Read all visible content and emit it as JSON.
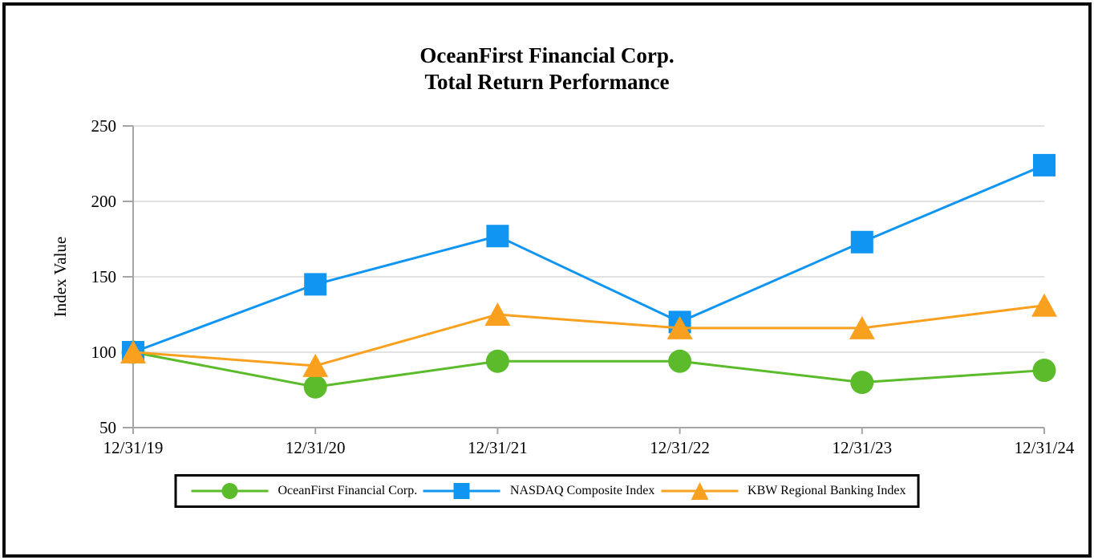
{
  "page": {
    "background_color": "#ffffff",
    "border_color": "#0a0a0a"
  },
  "chart_data": {
    "type": "line",
    "title": "OceanFirst Financial Corp. Total Return Performance",
    "title_lines": [
      "OceanFirst Financial Corp.",
      "Total Return Performance"
    ],
    "xlabel": "",
    "ylabel": "Index Value",
    "ylim": [
      50,
      250
    ],
    "yticks": [
      50,
      100,
      150,
      200,
      250
    ],
    "grid": "horizontal-only",
    "legend_position": "bottom-boxed",
    "categories": [
      "12/31/19",
      "12/31/20",
      "12/31/21",
      "12/31/22",
      "12/31/23",
      "12/31/24"
    ],
    "series": [
      {
        "name": "OceanFirst Financial Corp.",
        "marker": "circle",
        "color": "#5bbb2b",
        "values": [
          100,
          77,
          94,
          94,
          80,
          88
        ]
      },
      {
        "name": "NASDAQ Composite Index",
        "marker": "square",
        "color": "#1095f2",
        "values": [
          100,
          145,
          177,
          120,
          173,
          224
        ]
      },
      {
        "name": "KBW Regional Banking Index",
        "marker": "triangle",
        "color": "#f9a11e",
        "values": [
          100,
          91,
          125,
          116,
          116,
          131
        ]
      }
    ],
    "colors": {
      "axis": "#a6a6a6",
      "grid": "#d9d9d9",
      "text": "#000000"
    }
  }
}
